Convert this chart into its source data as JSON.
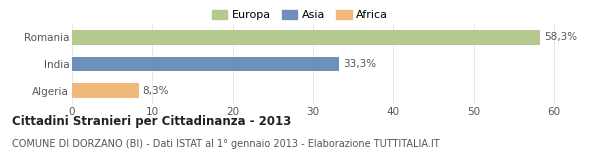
{
  "categories": [
    "Romania",
    "India",
    "Algeria"
  ],
  "values": [
    58.3,
    33.3,
    8.3
  ],
  "labels": [
    "58,3%",
    "33,3%",
    "8,3%"
  ],
  "bar_colors": [
    "#b5c98e",
    "#6e8fbc",
    "#f0b97a"
  ],
  "legend_labels": [
    "Europa",
    "Asia",
    "Africa"
  ],
  "legend_colors": [
    "#b5c98e",
    "#6e8fbc",
    "#f0b97a"
  ],
  "xlim": [
    0,
    62
  ],
  "xticks": [
    0,
    10,
    20,
    30,
    40,
    50,
    60
  ],
  "title": "Cittadini Stranieri per Cittadinanza - 2013",
  "subtitle": "COMUNE DI DORZANO (BI) - Dati ISTAT al 1° gennaio 2013 - Elaborazione TUTTITALIA.IT",
  "background_color": "#ffffff",
  "title_fontsize": 8.5,
  "subtitle_fontsize": 7.0,
  "bar_label_fontsize": 7.5,
  "ytick_fontsize": 7.5,
  "xtick_fontsize": 7.5,
  "legend_fontsize": 8.0
}
